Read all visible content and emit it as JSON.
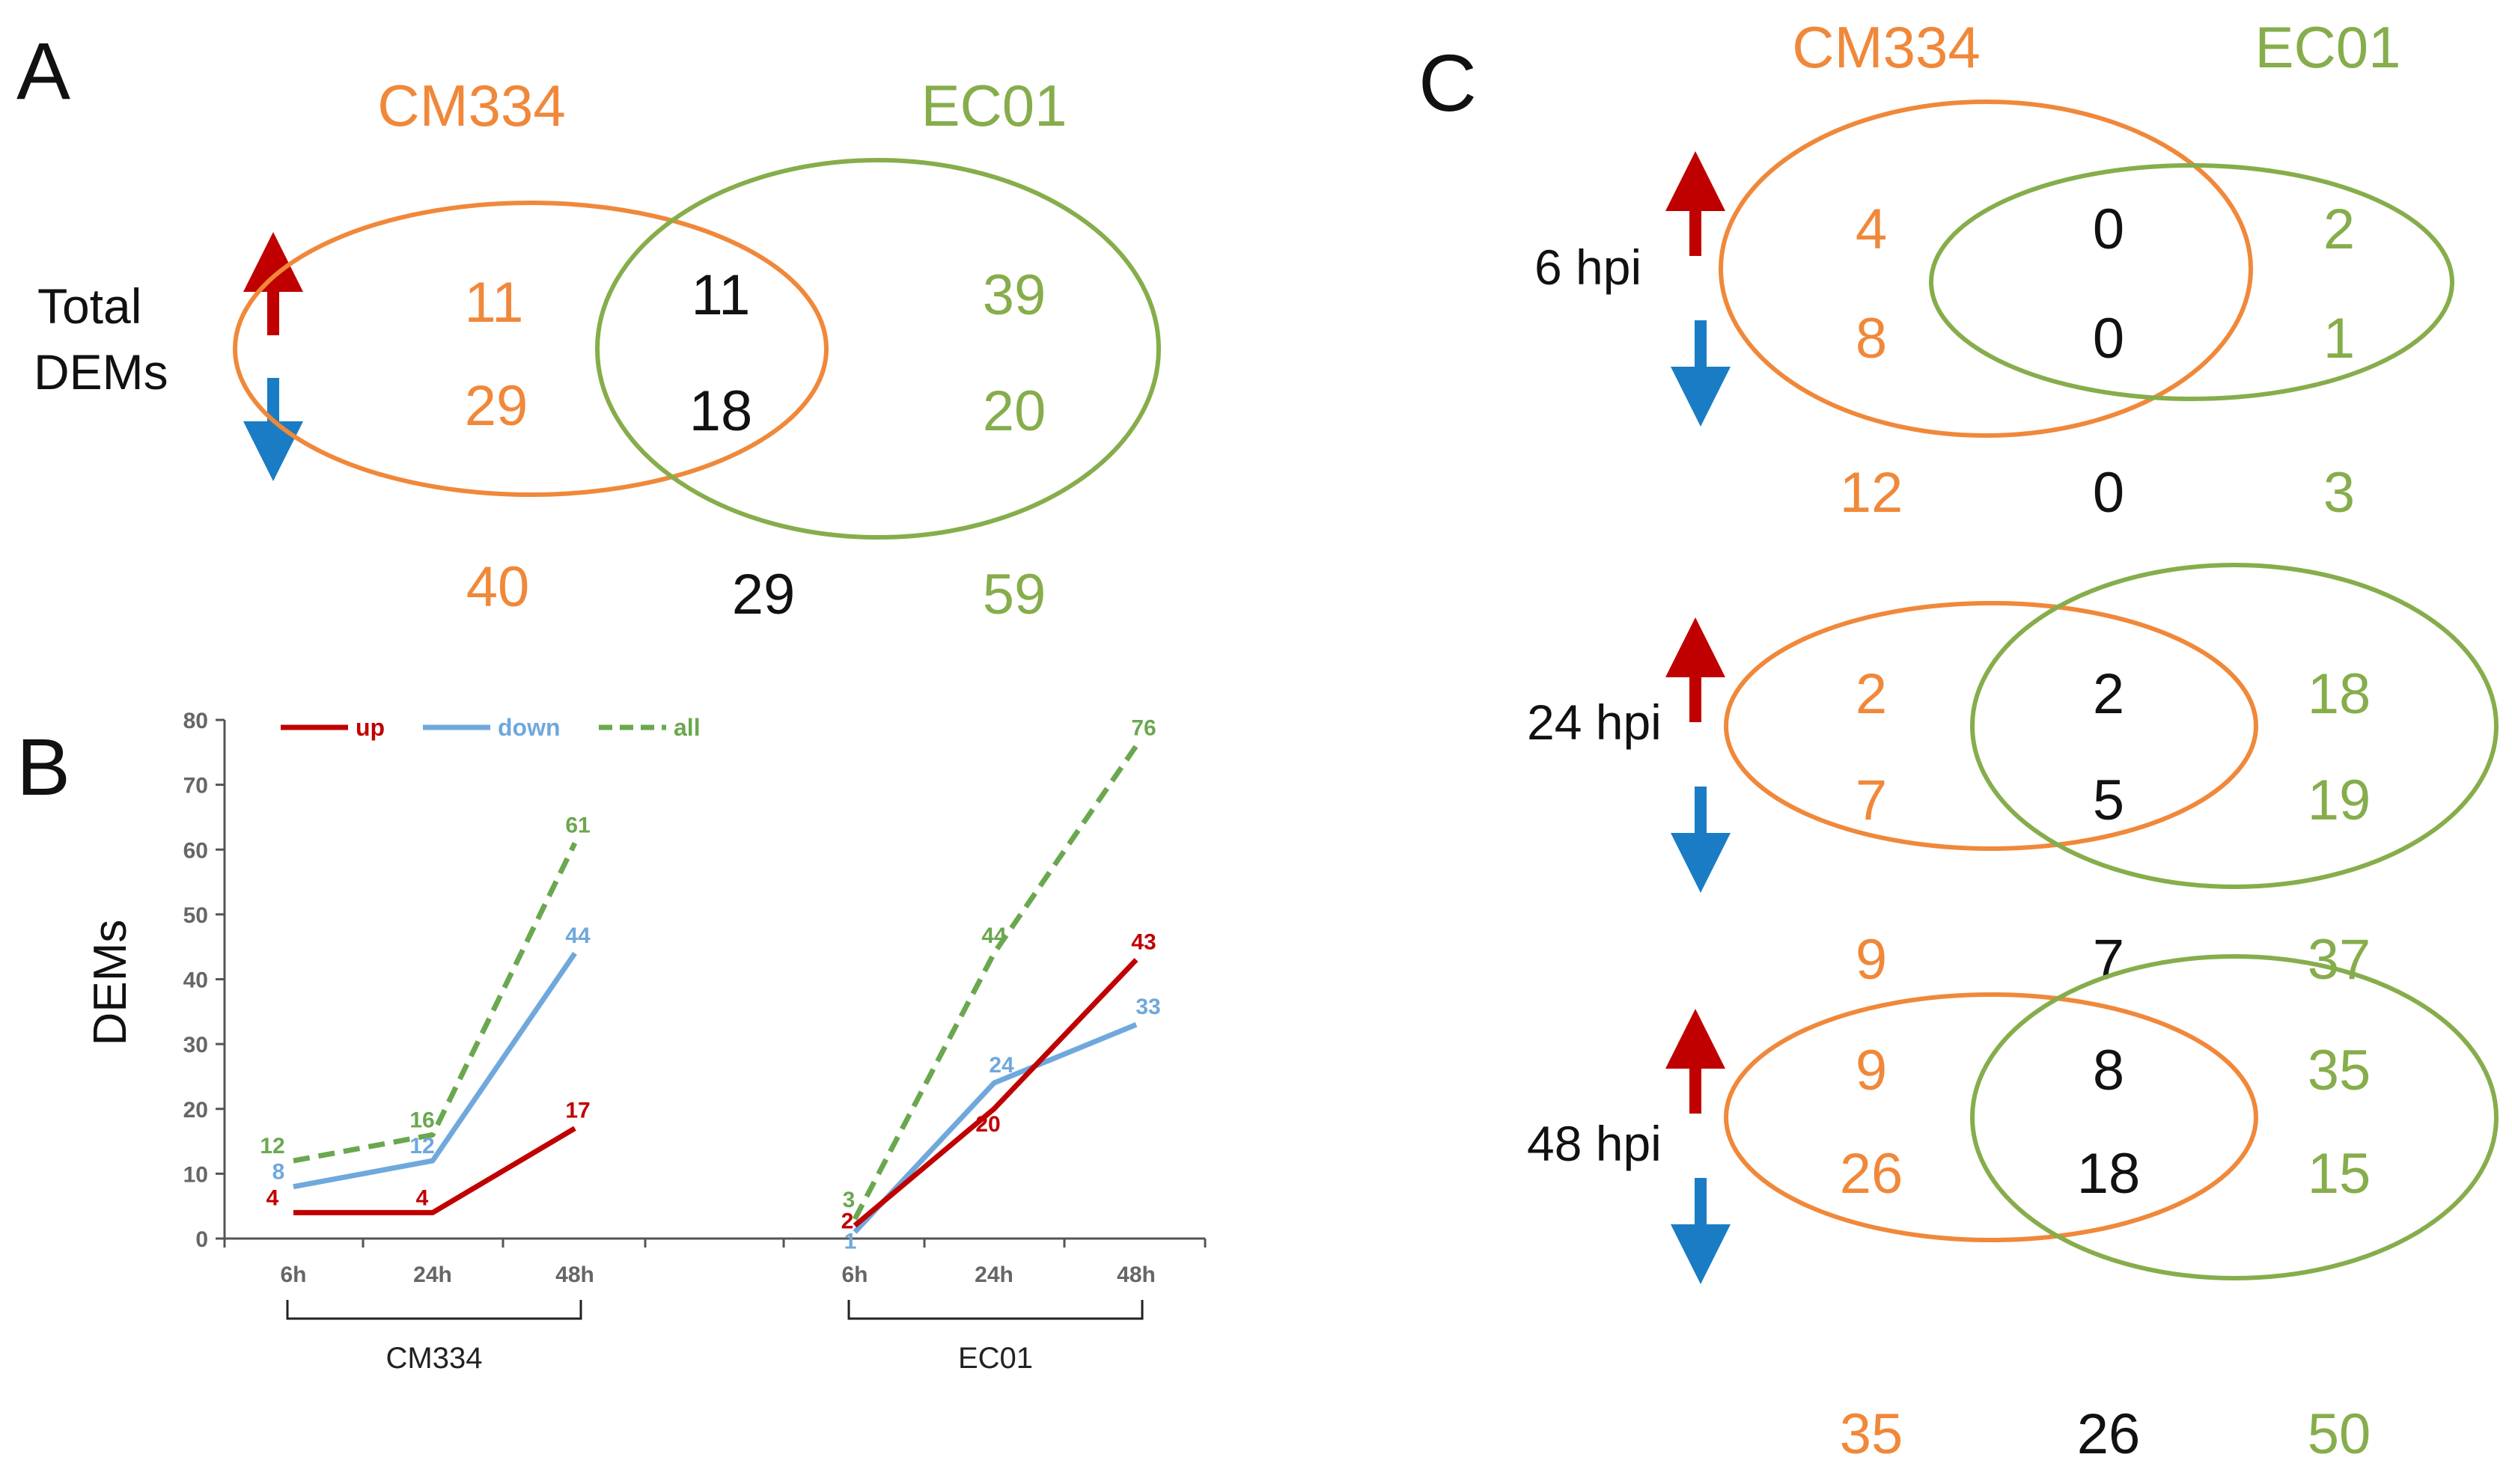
{
  "colors": {
    "orange": "#f0883a",
    "green": "#86ad4b",
    "black": "#111111",
    "red": "#c00000",
    "blue": "#1a7cc4",
    "line_red": "#c00000",
    "line_blue": "#6fa8dc",
    "line_green": "#6aa84f",
    "green_text": "#86ad4b"
  },
  "panel_a": {
    "letter": "A",
    "set1": "CM334",
    "set2": "EC01",
    "row_label_line1": "Total",
    "row_label_line2": "DEMs",
    "up": {
      "cm334": "11",
      "both": "11",
      "ec01": "39"
    },
    "down": {
      "cm334": "29",
      "both": "18",
      "ec01": "20"
    },
    "totals": {
      "cm334": "40",
      "both": "29",
      "ec01": "59"
    }
  },
  "panel_c": {
    "letter": "C",
    "set1": "CM334",
    "set2": "EC01",
    "rows": [
      {
        "label": "6 hpi",
        "up": {
          "cm334": "4",
          "both": "0",
          "ec01": "2"
        },
        "down": {
          "cm334": "8",
          "both": "0",
          "ec01": "1"
        },
        "totals": {
          "cm334": "12",
          "both": "0",
          "ec01": "3"
        }
      },
      {
        "label": "24 hpi",
        "up": {
          "cm334": "2",
          "both": "2",
          "ec01": "18"
        },
        "down": {
          "cm334": "7",
          "both": "5",
          "ec01": "19"
        },
        "totals": {
          "cm334": "9",
          "both": "7",
          "ec01": "37"
        }
      },
      {
        "label": "48 hpi",
        "up": {
          "cm334": "9",
          "both": "8",
          "ec01": "35"
        },
        "down": {
          "cm334": "26",
          "both": "18",
          "ec01": "15"
        },
        "totals": {
          "cm334": "35",
          "both": "26",
          "ec01": "50"
        }
      }
    ]
  },
  "chart_data": {
    "type": "line",
    "panel_letter": "B",
    "title": "",
    "xlabel": "",
    "ylabel": "DEMs",
    "ylim": [
      0,
      80
    ],
    "yticks": [
      "0",
      "10",
      "20",
      "30",
      "40",
      "50",
      "60",
      "70",
      "80"
    ],
    "groups": [
      {
        "name": "CM334",
        "categories": [
          "6h",
          "24h",
          "48h"
        ]
      },
      {
        "name": "EC01",
        "categories": [
          "6h",
          "24h",
          "48h"
        ]
      }
    ],
    "series": [
      {
        "name": "up",
        "style": "solid",
        "groups": [
          {
            "values": [
              4,
              4,
              17
            ],
            "labels": [
              "4",
              "4",
              "17"
            ]
          },
          {
            "values": [
              2,
              20,
              43
            ],
            "labels": [
              "2",
              "20",
              "43"
            ]
          }
        ]
      },
      {
        "name": "down",
        "style": "solid",
        "groups": [
          {
            "values": [
              8,
              12,
              44
            ],
            "labels": [
              "8",
              "12",
              "44"
            ]
          },
          {
            "values": [
              1,
              24,
              33
            ],
            "labels": [
              "1",
              "24",
              "33"
            ]
          }
        ]
      },
      {
        "name": "all",
        "style": "dashed",
        "groups": [
          {
            "values": [
              12,
              16,
              61
            ],
            "labels": [
              "12",
              "16",
              "61"
            ]
          },
          {
            "values": [
              3,
              44,
              76
            ],
            "labels": [
              "3",
              "44",
              "76"
            ]
          }
        ]
      }
    ]
  }
}
